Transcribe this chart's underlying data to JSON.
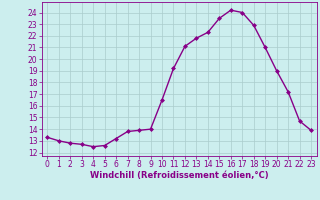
{
  "x": [
    0,
    1,
    2,
    3,
    4,
    5,
    6,
    7,
    8,
    9,
    10,
    11,
    12,
    13,
    14,
    15,
    16,
    17,
    18,
    19,
    20,
    21,
    22,
    23
  ],
  "y": [
    13.3,
    13.0,
    12.8,
    12.7,
    12.5,
    12.6,
    13.2,
    13.8,
    13.9,
    14.0,
    16.5,
    19.2,
    21.1,
    21.8,
    22.3,
    23.5,
    24.2,
    24.0,
    22.9,
    21.0,
    19.0,
    17.2,
    14.7,
    13.9
  ],
  "line_color": "#880088",
  "marker": "D",
  "marker_size": 2.0,
  "bg_color": "#cceeee",
  "grid_color": "#aacccc",
  "ylabel_ticks": [
    12,
    13,
    14,
    15,
    16,
    17,
    18,
    19,
    20,
    21,
    22,
    23,
    24
  ],
  "ylim": [
    11.7,
    24.9
  ],
  "xlim": [
    -0.5,
    23.5
  ],
  "xlabel": "Windchill (Refroidissement éolien,°C)",
  "line_width": 1.0,
  "tick_fontsize": 5.5,
  "xlabel_fontsize": 6.0
}
